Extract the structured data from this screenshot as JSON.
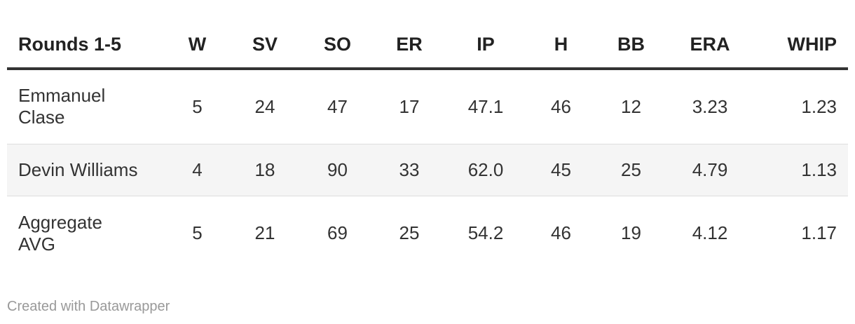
{
  "chart_data": {
    "type": "table",
    "columns": [
      "Rounds 1-5",
      "W",
      "SV",
      "SO",
      "ER",
      "IP",
      "H",
      "BB",
      "ERA",
      "WHIP"
    ],
    "rows": [
      {
        "name_lines": [
          "Emmanuel",
          "Clase"
        ],
        "values": [
          "5",
          "24",
          "47",
          "17",
          "47.1",
          "46",
          "12",
          "3.23",
          "1.23"
        ]
      },
      {
        "name_lines": [
          "Devin Williams"
        ],
        "values": [
          "4",
          "18",
          "90",
          "33",
          "62.0",
          "45",
          "25",
          "4.79",
          "1.13"
        ]
      },
      {
        "name_lines": [
          "Aggregate",
          "AVG"
        ],
        "values": [
          "5",
          "21",
          "69",
          "25",
          "54.2",
          "46",
          "19",
          "4.12",
          "1.17"
        ]
      }
    ]
  },
  "footer": {
    "credit": "Created with Datawrapper"
  },
  "colors": {
    "header_rule": "#333333",
    "row_divider": "#dddddd",
    "stripe": "#f5f5f5",
    "credit_text": "#999999"
  }
}
